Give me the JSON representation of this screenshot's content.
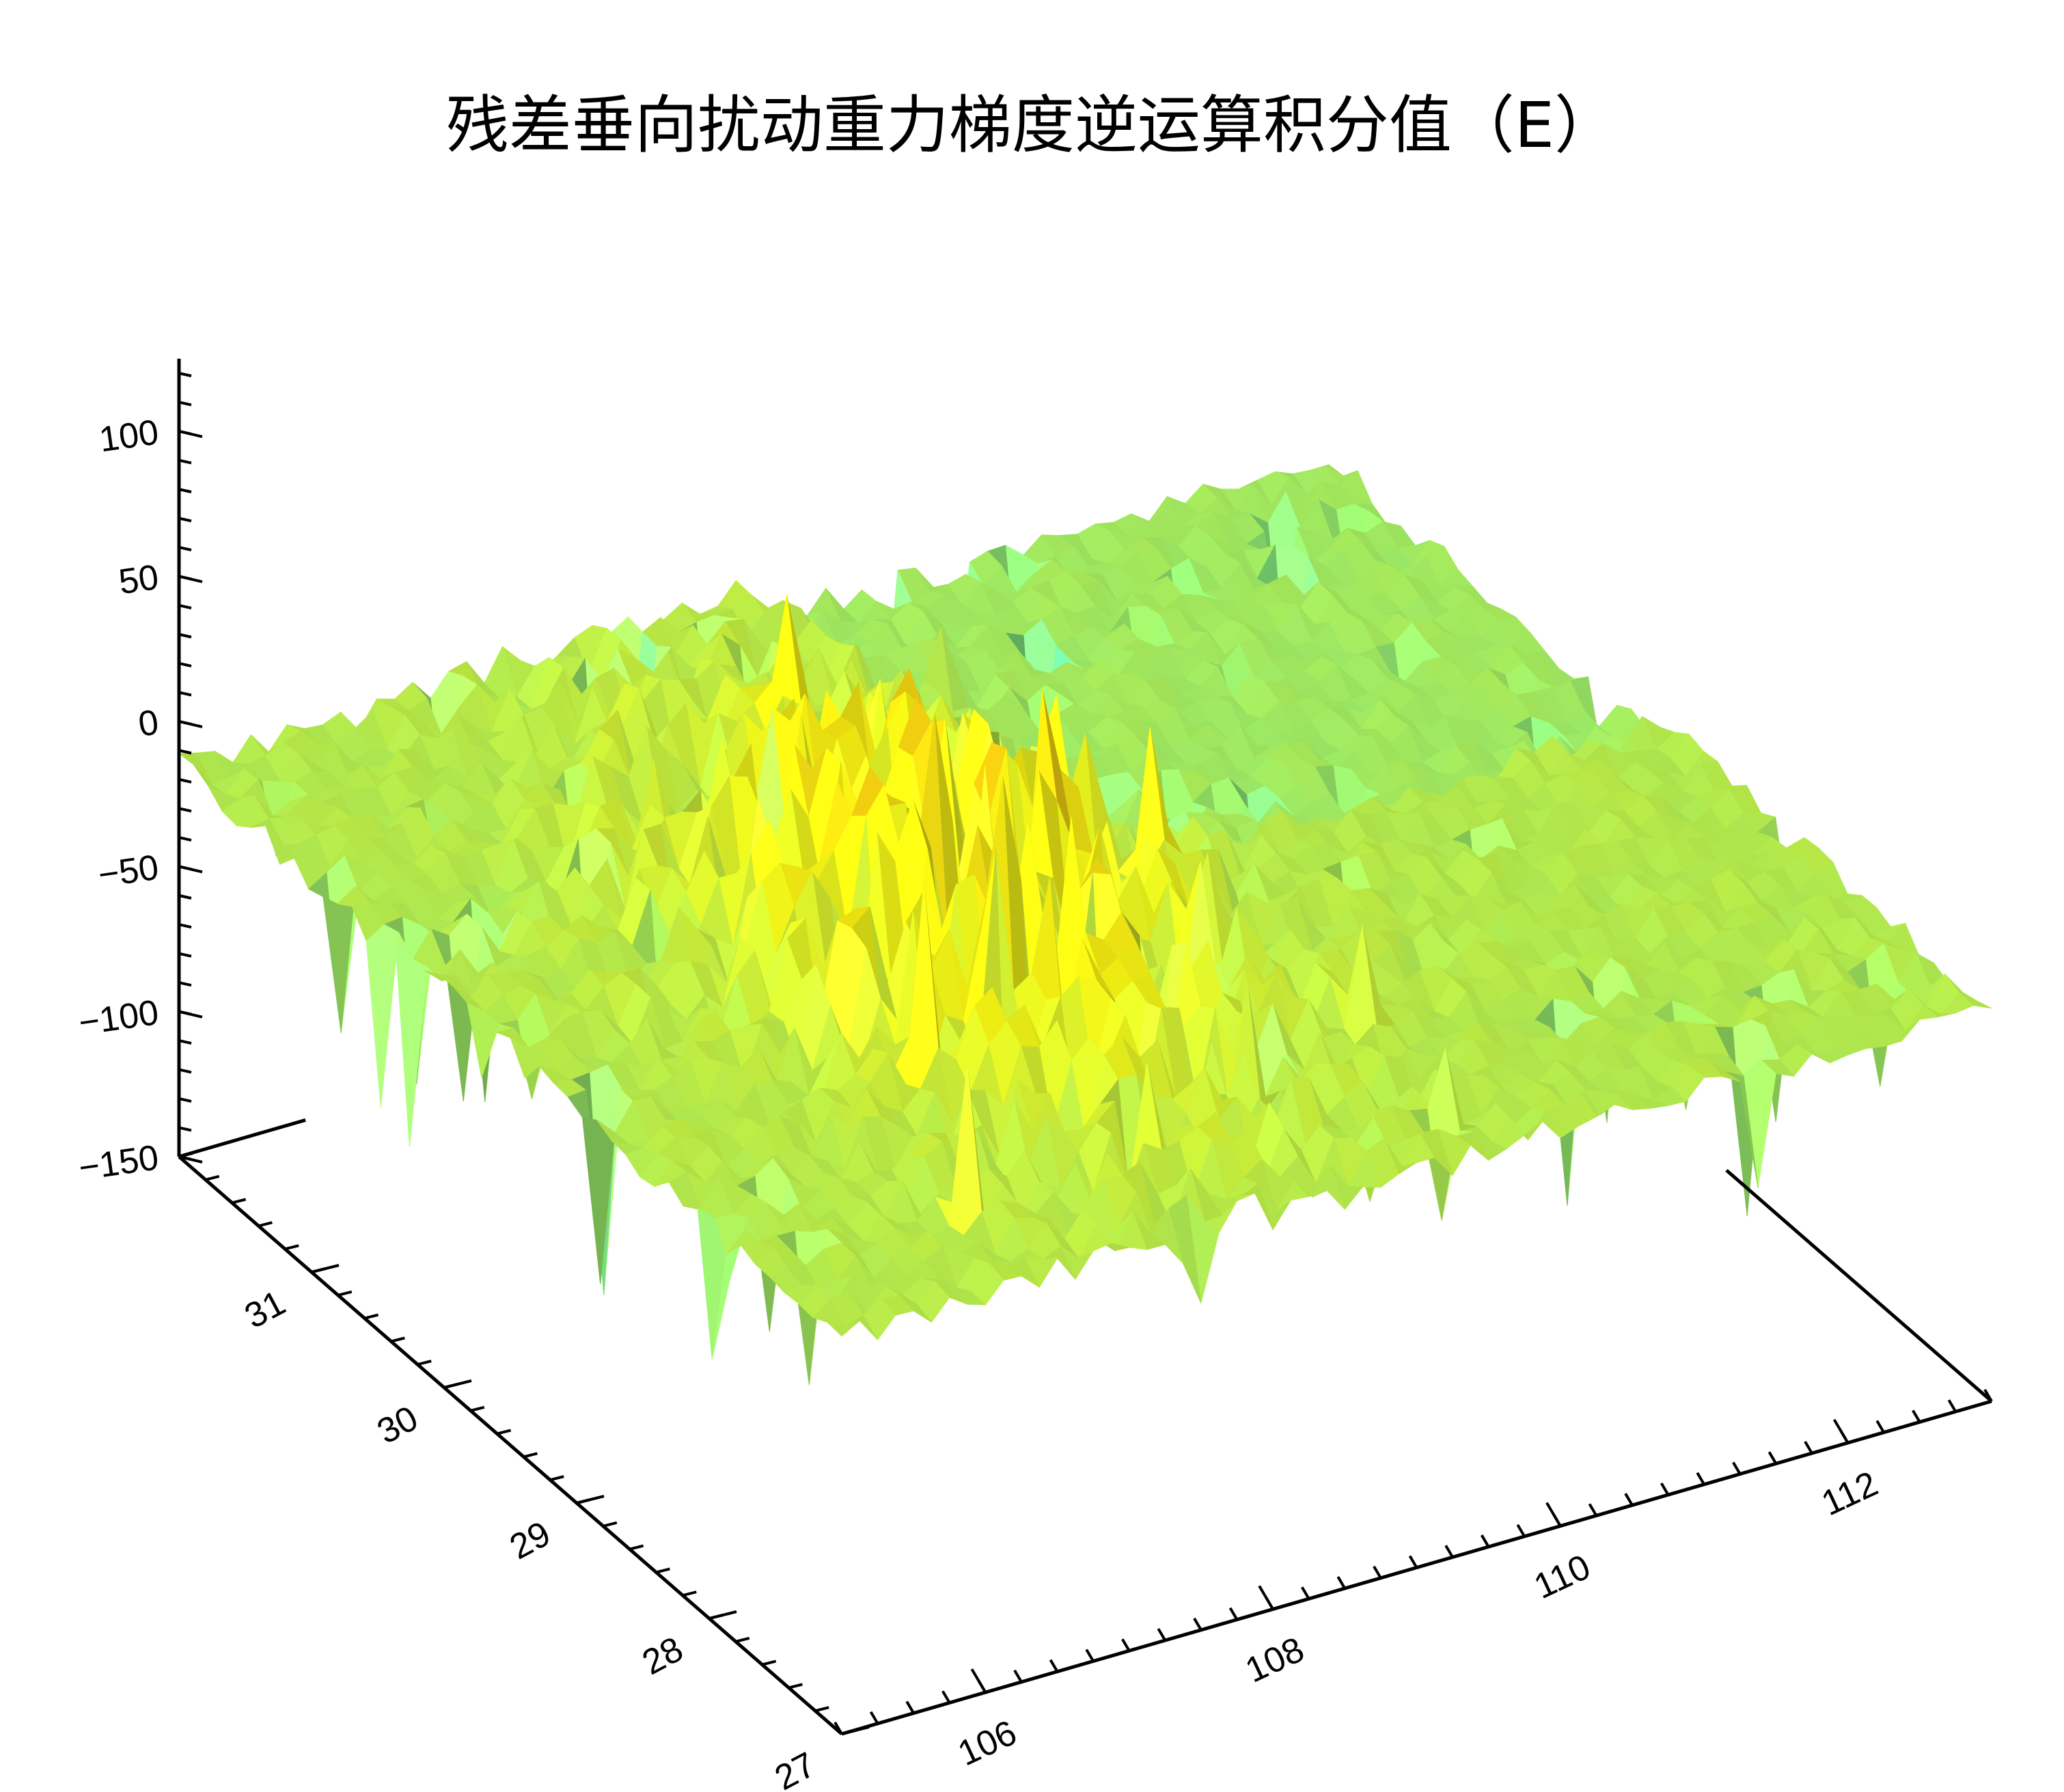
{
  "chart_data": {
    "type": "surface3d",
    "title": "残差垂向扰动重力梯度逆运算积分值（E）",
    "xlabel": "",
    "ylabel": "",
    "zlabel": "",
    "x_range": [
      105,
      113
    ],
    "y_range": [
      27,
      32
    ],
    "z_range": [
      -150,
      125
    ],
    "x_ticks": [
      106,
      108,
      110,
      112
    ],
    "y_ticks": [
      27,
      28,
      29,
      30,
      31
    ],
    "z_ticks": [
      -150,
      -100,
      -50,
      0,
      50,
      100
    ],
    "x_tick_labels": [
      "106",
      "108",
      "110",
      "112"
    ],
    "y_tick_labels": [
      "27",
      "28",
      "29",
      "30",
      "31"
    ],
    "z_tick_labels": [
      "−150",
      "−100",
      "−50",
      "0",
      "50",
      "100"
    ],
    "grid": false,
    "legend": "none",
    "colormap": [
      "#0b3fd9",
      "#19e0e6",
      "#9cff80",
      "#ffff14",
      "#f2a60d",
      "#e60a05"
    ],
    "peak_max": 120,
    "trough_min": -140
  }
}
